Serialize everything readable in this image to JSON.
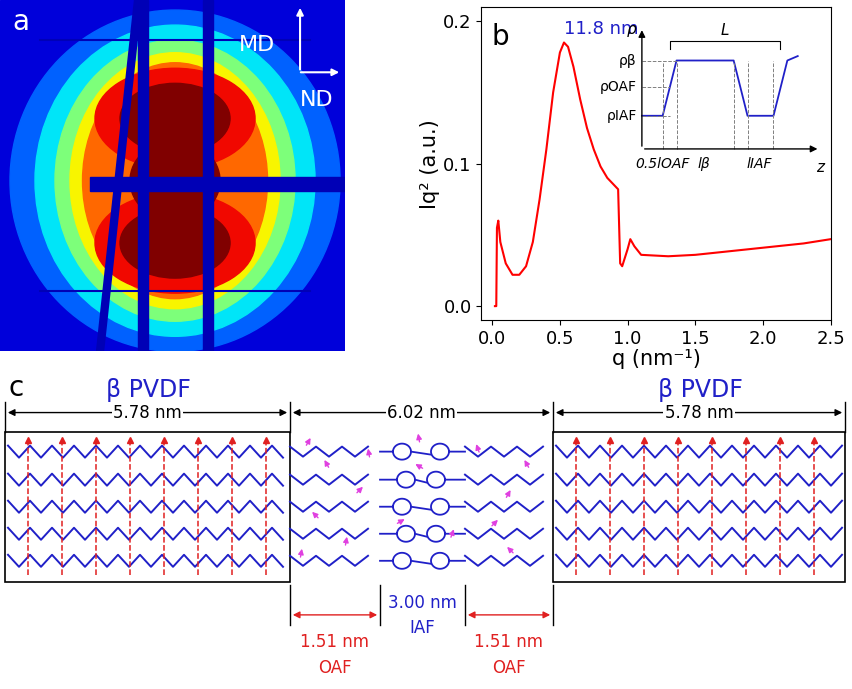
{
  "panel_a": {
    "label": "a",
    "vertical_axis": "MD",
    "horizontal_axis": "ND"
  },
  "chart_data": {
    "label": "b",
    "type": "line",
    "color": "#ff0000",
    "x_label": "q (nm⁻¹)",
    "y_label": "Iq² (a.u.)",
    "x": [
      0.02,
      0.03,
      0.035,
      0.045,
      0.06,
      0.1,
      0.15,
      0.2,
      0.25,
      0.3,
      0.35,
      0.4,
      0.45,
      0.5,
      0.53,
      0.56,
      0.6,
      0.65,
      0.7,
      0.75,
      0.8,
      0.85,
      0.9,
      0.93,
      0.945,
      0.96,
      1.0,
      1.02,
      1.05,
      1.1,
      1.3,
      1.5,
      1.7,
      1.9,
      2.1,
      2.3,
      2.5
    ],
    "values": [
      0.0,
      0.0,
      0.055,
      0.06,
      0.045,
      0.03,
      0.022,
      0.022,
      0.028,
      0.045,
      0.075,
      0.11,
      0.15,
      0.178,
      0.185,
      0.182,
      0.168,
      0.145,
      0.125,
      0.11,
      0.098,
      0.09,
      0.085,
      0.082,
      0.03,
      0.028,
      0.04,
      0.047,
      0.042,
      0.036,
      0.035,
      0.036,
      0.038,
      0.04,
      0.042,
      0.044,
      0.047
    ],
    "xlim": [
      -0.08,
      2.5
    ],
    "ylim": [
      -0.01,
      0.21
    ],
    "xticks": [
      {
        "value": 0.0,
        "label": "0.0"
      },
      {
        "value": 0.5,
        "label": "0.5"
      },
      {
        "value": 1.0,
        "label": "1.0"
      },
      {
        "value": 1.5,
        "label": "1.5"
      },
      {
        "value": 2.0,
        "label": "2.0"
      },
      {
        "value": 2.5,
        "label": "2.5"
      }
    ],
    "yticks": [
      {
        "value": 0.0,
        "label": "0.0"
      },
      {
        "value": 0.1,
        "label": "0.1"
      },
      {
        "value": 0.2,
        "label": "0.2"
      }
    ],
    "annotation": "11.8 nm",
    "inset": {
      "y_label": "ρ",
      "x_label": "z",
      "levels": [
        "ρβ",
        "ρOAF",
        "ρIAF"
      ],
      "period": "L",
      "lengths": [
        "0.5lOAF",
        "lβ",
        "lIAF"
      ]
    }
  },
  "panel_c": {
    "label": "c",
    "crystal": "β PVDF",
    "crystal_thickness": "5.78 nm",
    "amorphous_thickness": "6.02 nm",
    "outer": {
      "thickness": "1.51 nm",
      "name": "OAF"
    },
    "inner": {
      "thickness": "3.00 nm",
      "name": "IAF"
    }
  }
}
